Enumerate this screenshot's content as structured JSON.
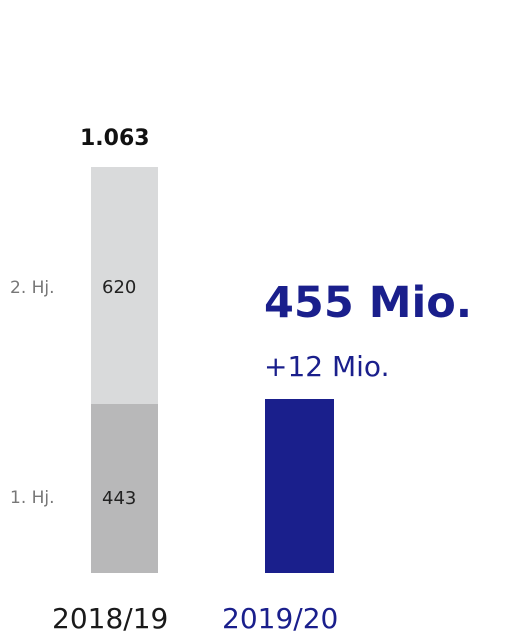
{
  "chart_data": {
    "type": "bar",
    "stacked": true,
    "categories": [
      "2018/19",
      "2019/20"
    ],
    "series": [
      {
        "name": "1. Hj.",
        "values": [
          443,
          455
        ]
      },
      {
        "name": "2. Hj.",
        "values": [
          620,
          null
        ]
      }
    ],
    "totals": [
      {
        "category": "2018/19",
        "label": "1.063",
        "value": 1063
      }
    ],
    "segment_labels": [
      "443",
      "620"
    ],
    "highlight": {
      "category": "2019/20",
      "value": 455,
      "value_label": "455 Mio.",
      "delta_label": "+12 Mio."
    },
    "ylim": [
      0,
      1063
    ],
    "grid": false,
    "colors": {
      "first_half": "#b8b8b9",
      "second_half": "#d9dadb",
      "highlight": "#1a1f8c",
      "category_2018": "#1a1a1a",
      "category_2019": "#1a1f8c"
    }
  }
}
